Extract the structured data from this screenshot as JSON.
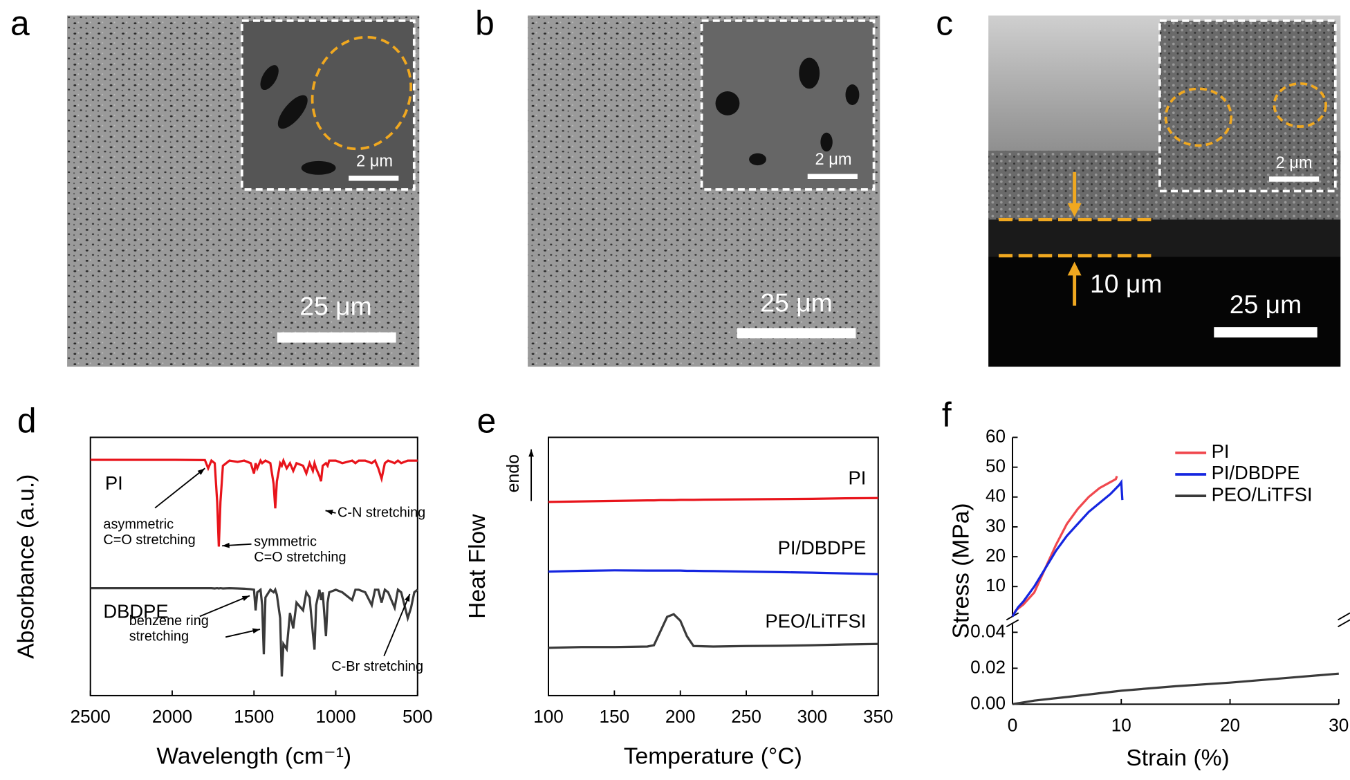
{
  "image_panels": [
    {
      "label": "a",
      "inset_scale": "2 μm",
      "scale": "25 μm"
    },
    {
      "label": "b",
      "inset_scale": "2 μm",
      "scale": "25 μm"
    },
    {
      "label": "c",
      "inset_scale": "2 μm",
      "scale": "25 μm",
      "thickness": "10 μm"
    }
  ],
  "chart_data": [
    {
      "type": "line",
      "panel_label": "d",
      "x_label": "Wavelength (cm⁻¹)",
      "y_label": "Absorbance (a.u.)",
      "xlim": [
        2500,
        500
      ],
      "xticks": [
        2500,
        2000,
        1500,
        1000,
        500
      ],
      "ylim": [
        0,
        10
      ],
      "x": [
        2500,
        2000,
        1800,
        1780,
        1760,
        1740,
        1725,
        1715,
        1705,
        1690,
        1650,
        1600,
        1560,
        1520,
        1500,
        1490,
        1480,
        1460,
        1450,
        1440,
        1430,
        1400,
        1380,
        1370,
        1360,
        1340,
        1330,
        1320,
        1300,
        1280,
        1260,
        1240,
        1200,
        1180,
        1160,
        1140,
        1130,
        1120,
        1100,
        1090,
        1080,
        1060,
        1050,
        1040,
        1000,
        960,
        900,
        880,
        860,
        820,
        780,
        760,
        740,
        720,
        700,
        680,
        640,
        620,
        600,
        560,
        540,
        520,
        500
      ],
      "series": [
        {
          "name": "PI",
          "color": "#e8141b",
          "values": [
            9.13,
            9.13,
            9.12,
            8.8,
            9.1,
            9.0,
            7.5,
            5.77,
            7.5,
            8.9,
            9.1,
            9.05,
            9.1,
            9.0,
            8.6,
            9.0,
            8.8,
            9.1,
            9.0,
            9.05,
            9.1,
            9.0,
            8.2,
            7.25,
            8.3,
            9.0,
            8.9,
            9.1,
            8.8,
            9.0,
            8.7,
            9.0,
            8.9,
            8.6,
            9.0,
            8.7,
            9.0,
            8.8,
            8.5,
            8.3,
            8.9,
            9.0,
            8.9,
            9.1,
            9.1,
            9.0,
            9.1,
            9.0,
            9.1,
            9.1,
            9.0,
            9.1,
            8.8,
            8.4,
            9.0,
            9.1,
            9.0,
            9.1,
            9.0,
            9.1,
            9.1,
            9.1,
            9.1
          ]
        },
        {
          "name": "DBDPE",
          "color": "#3a3a3a",
          "values": [
            4.16,
            4.16,
            4.16,
            4.16,
            4.16,
            4.15,
            4.16,
            4.15,
            4.16,
            4.15,
            4.16,
            4.15,
            4.14,
            4.12,
            4.1,
            3.3,
            4.0,
            4.1,
            3.5,
            1.6,
            3.8,
            4.1,
            4.0,
            4.1,
            3.9,
            3.0,
            0.74,
            2.0,
            1.8,
            3.2,
            2.6,
            3.6,
            3.3,
            4.0,
            3.8,
            2.4,
            1.78,
            3.5,
            4.1,
            3.7,
            4.0,
            2.3,
            3.6,
            4.0,
            4.1,
            4.0,
            3.7,
            4.1,
            4.1,
            4.0,
            3.5,
            4.1,
            4.1,
            3.6,
            4.1,
            4.0,
            3.4,
            4.1,
            4.0,
            3.0,
            3.4,
            4.0,
            4.1
          ]
        }
      ],
      "annotations": [
        {
          "text": [
            "asymmetric",
            "C=O stretching"
          ]
        },
        {
          "text": [
            "symmetric",
            "C=O stretching"
          ]
        },
        {
          "text": [
            "C-N stretching"
          ]
        },
        {
          "text": [
            "benzene ring",
            "stretching"
          ]
        },
        {
          "text": [
            "C-Br stretching"
          ]
        }
      ]
    },
    {
      "type": "line",
      "panel_label": "e",
      "x_label": "Temperature (°C)",
      "y_label": "Heat Flow",
      "annotation": "endo",
      "xlim": [
        100,
        350
      ],
      "xticks": [
        100,
        150,
        200,
        250,
        300,
        350
      ],
      "ylim": [
        0,
        10
      ],
      "x": [
        100,
        125,
        150,
        175,
        180,
        185,
        190,
        195,
        200,
        205,
        210,
        225,
        250,
        275,
        300,
        325,
        350
      ],
      "series": [
        {
          "name": "PI",
          "color": "#e8141b",
          "values": [
            7.5,
            7.52,
            7.54,
            7.56,
            7.56,
            7.57,
            7.57,
            7.57,
            7.58,
            7.58,
            7.58,
            7.59,
            7.6,
            7.61,
            7.62,
            7.64,
            7.65
          ]
        },
        {
          "name": "PI/DBDPE",
          "color": "#1526e0",
          "values": [
            4.8,
            4.83,
            4.85,
            4.84,
            4.84,
            4.84,
            4.84,
            4.84,
            4.84,
            4.83,
            4.83,
            4.82,
            4.8,
            4.78,
            4.76,
            4.73,
            4.7
          ]
        },
        {
          "name": "PEO/LiTFSI",
          "color": "#3a3a3a",
          "values": [
            1.85,
            1.88,
            1.88,
            1.9,
            1.95,
            2.5,
            3.05,
            3.15,
            2.9,
            2.3,
            1.92,
            1.9,
            1.92,
            1.93,
            1.95,
            1.98,
            2.0
          ]
        }
      ]
    },
    {
      "type": "broken-line",
      "panel_label": "f",
      "x_label": "Strain (%)",
      "y_label": "Stress (MPa)",
      "xlim": [
        0,
        30
      ],
      "xticks": [
        0,
        10,
        20,
        30
      ],
      "ylim": [
        0,
        0.045
      ],
      "yticks": [
        {
          "value": 0,
          "label": "0.00"
        },
        {
          "value": 0.02,
          "label": "0.02"
        },
        {
          "value": 0.04,
          "label": "0.04"
        }
      ],
      "ylim_upper": [
        0,
        60
      ],
      "yticks_upper": [
        10,
        20,
        30,
        40,
        50,
        60
      ],
      "legend": "top-right",
      "series": [
        {
          "name": "PI",
          "color": "#f0484e",
          "axis": "upper",
          "x": [
            0,
            0.3,
            1,
            2,
            3,
            4,
            5,
            6,
            7,
            8,
            9,
            9.5,
            9.6
          ],
          "values": [
            0,
            2,
            4,
            8,
            16,
            24,
            31,
            36,
            40,
            43,
            45,
            46,
            47
          ]
        },
        {
          "name": "PI/DBDPE",
          "color": "#1526e0",
          "axis": "upper",
          "x": [
            0,
            0.5,
            1,
            2,
            3,
            4,
            5,
            6,
            7,
            8,
            9,
            9.8,
            10,
            10.05,
            10.1
          ],
          "values": [
            0,
            3,
            5,
            10,
            16,
            22,
            27,
            31,
            35,
            38,
            41,
            44,
            45,
            42,
            39
          ]
        },
        {
          "name": "PEO/LiTFSI",
          "color": "#3a3a3a",
          "axis": "lower",
          "x": [
            0,
            2,
            5,
            10,
            15,
            20,
            25,
            30
          ],
          "values": [
            0,
            0.002,
            0.004,
            0.0075,
            0.01,
            0.012,
            0.0145,
            0.017
          ]
        }
      ]
    }
  ]
}
